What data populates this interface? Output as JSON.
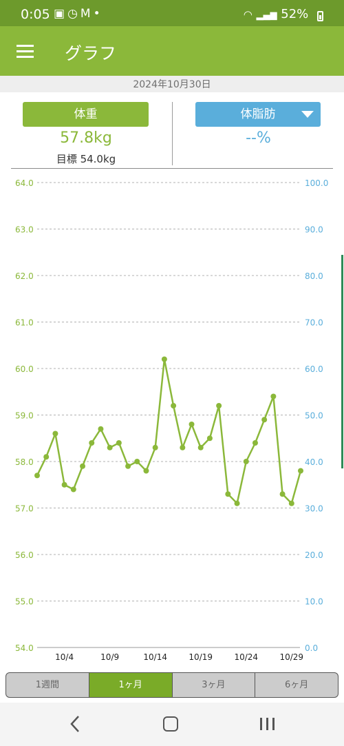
{
  "status_bar": {
    "time": "0:05",
    "icons": [
      "gallery-icon",
      "alarm-icon",
      "gmail-icon",
      "dot"
    ],
    "battery": "52%"
  },
  "app_bar": {
    "title": "グラフ"
  },
  "date": "2024年10月30日",
  "weight_panel": {
    "label": "体重",
    "value": "57.8kg",
    "goal": "目標 54.0kg"
  },
  "fat_panel": {
    "label": "体脂肪",
    "value": "--%"
  },
  "tabs": [
    {
      "label": "1週間",
      "active": false
    },
    {
      "label": "1ヶ月",
      "active": true
    },
    {
      "label": "3ヶ月",
      "active": false
    },
    {
      "label": "6ヶ月",
      "active": false
    }
  ],
  "colors": {
    "weight": "#8bb83a",
    "fat": "#5aaedb",
    "appbar": "#8bb83a",
    "statusbar": "#6d9a2c"
  },
  "chart_data": {
    "type": "line",
    "title": "",
    "xlabel": "",
    "ylabel": "",
    "x_ticks": [
      "10/4",
      "10/9",
      "10/14",
      "10/19",
      "10/24",
      "10/29"
    ],
    "y_left": {
      "ylim": [
        54.0,
        64.0
      ],
      "ticks": [
        "54.0",
        "55.0",
        "56.0",
        "57.0",
        "58.0",
        "59.0",
        "60.0",
        "61.0",
        "62.0",
        "63.0",
        "64.0"
      ]
    },
    "y_right": {
      "ylim": [
        0.0,
        100.0
      ],
      "ticks": [
        "0.0",
        "10.0",
        "20.0",
        "30.0",
        "40.0",
        "50.0",
        "60.0",
        "70.0",
        "80.0",
        "90.0",
        "100.0"
      ]
    },
    "grid": true,
    "series": [
      {
        "x": [
          "10/1",
          "10/2",
          "10/3",
          "10/4",
          "10/5",
          "10/6",
          "10/7",
          "10/8",
          "10/9",
          "10/10",
          "10/11",
          "10/12",
          "10/13",
          "10/14",
          "10/15",
          "10/16",
          "10/17",
          "10/18",
          "10/19",
          "10/20",
          "10/21",
          "10/22",
          "10/23",
          "10/24",
          "10/25",
          "10/26",
          "10/27",
          "10/28",
          "10/29",
          "10/30"
        ],
        "values": [
          57.7,
          58.1,
          58.6,
          57.5,
          57.4,
          57.9,
          58.4,
          58.7,
          58.3,
          58.4,
          57.9,
          58.0,
          57.8,
          58.3,
          60.2,
          59.2,
          58.3,
          58.8,
          58.3,
          58.5,
          59.2,
          57.3,
          57.1,
          58.0,
          58.4,
          58.9,
          59.4,
          57.3,
          57.1,
          57.8
        ]
      }
    ]
  }
}
